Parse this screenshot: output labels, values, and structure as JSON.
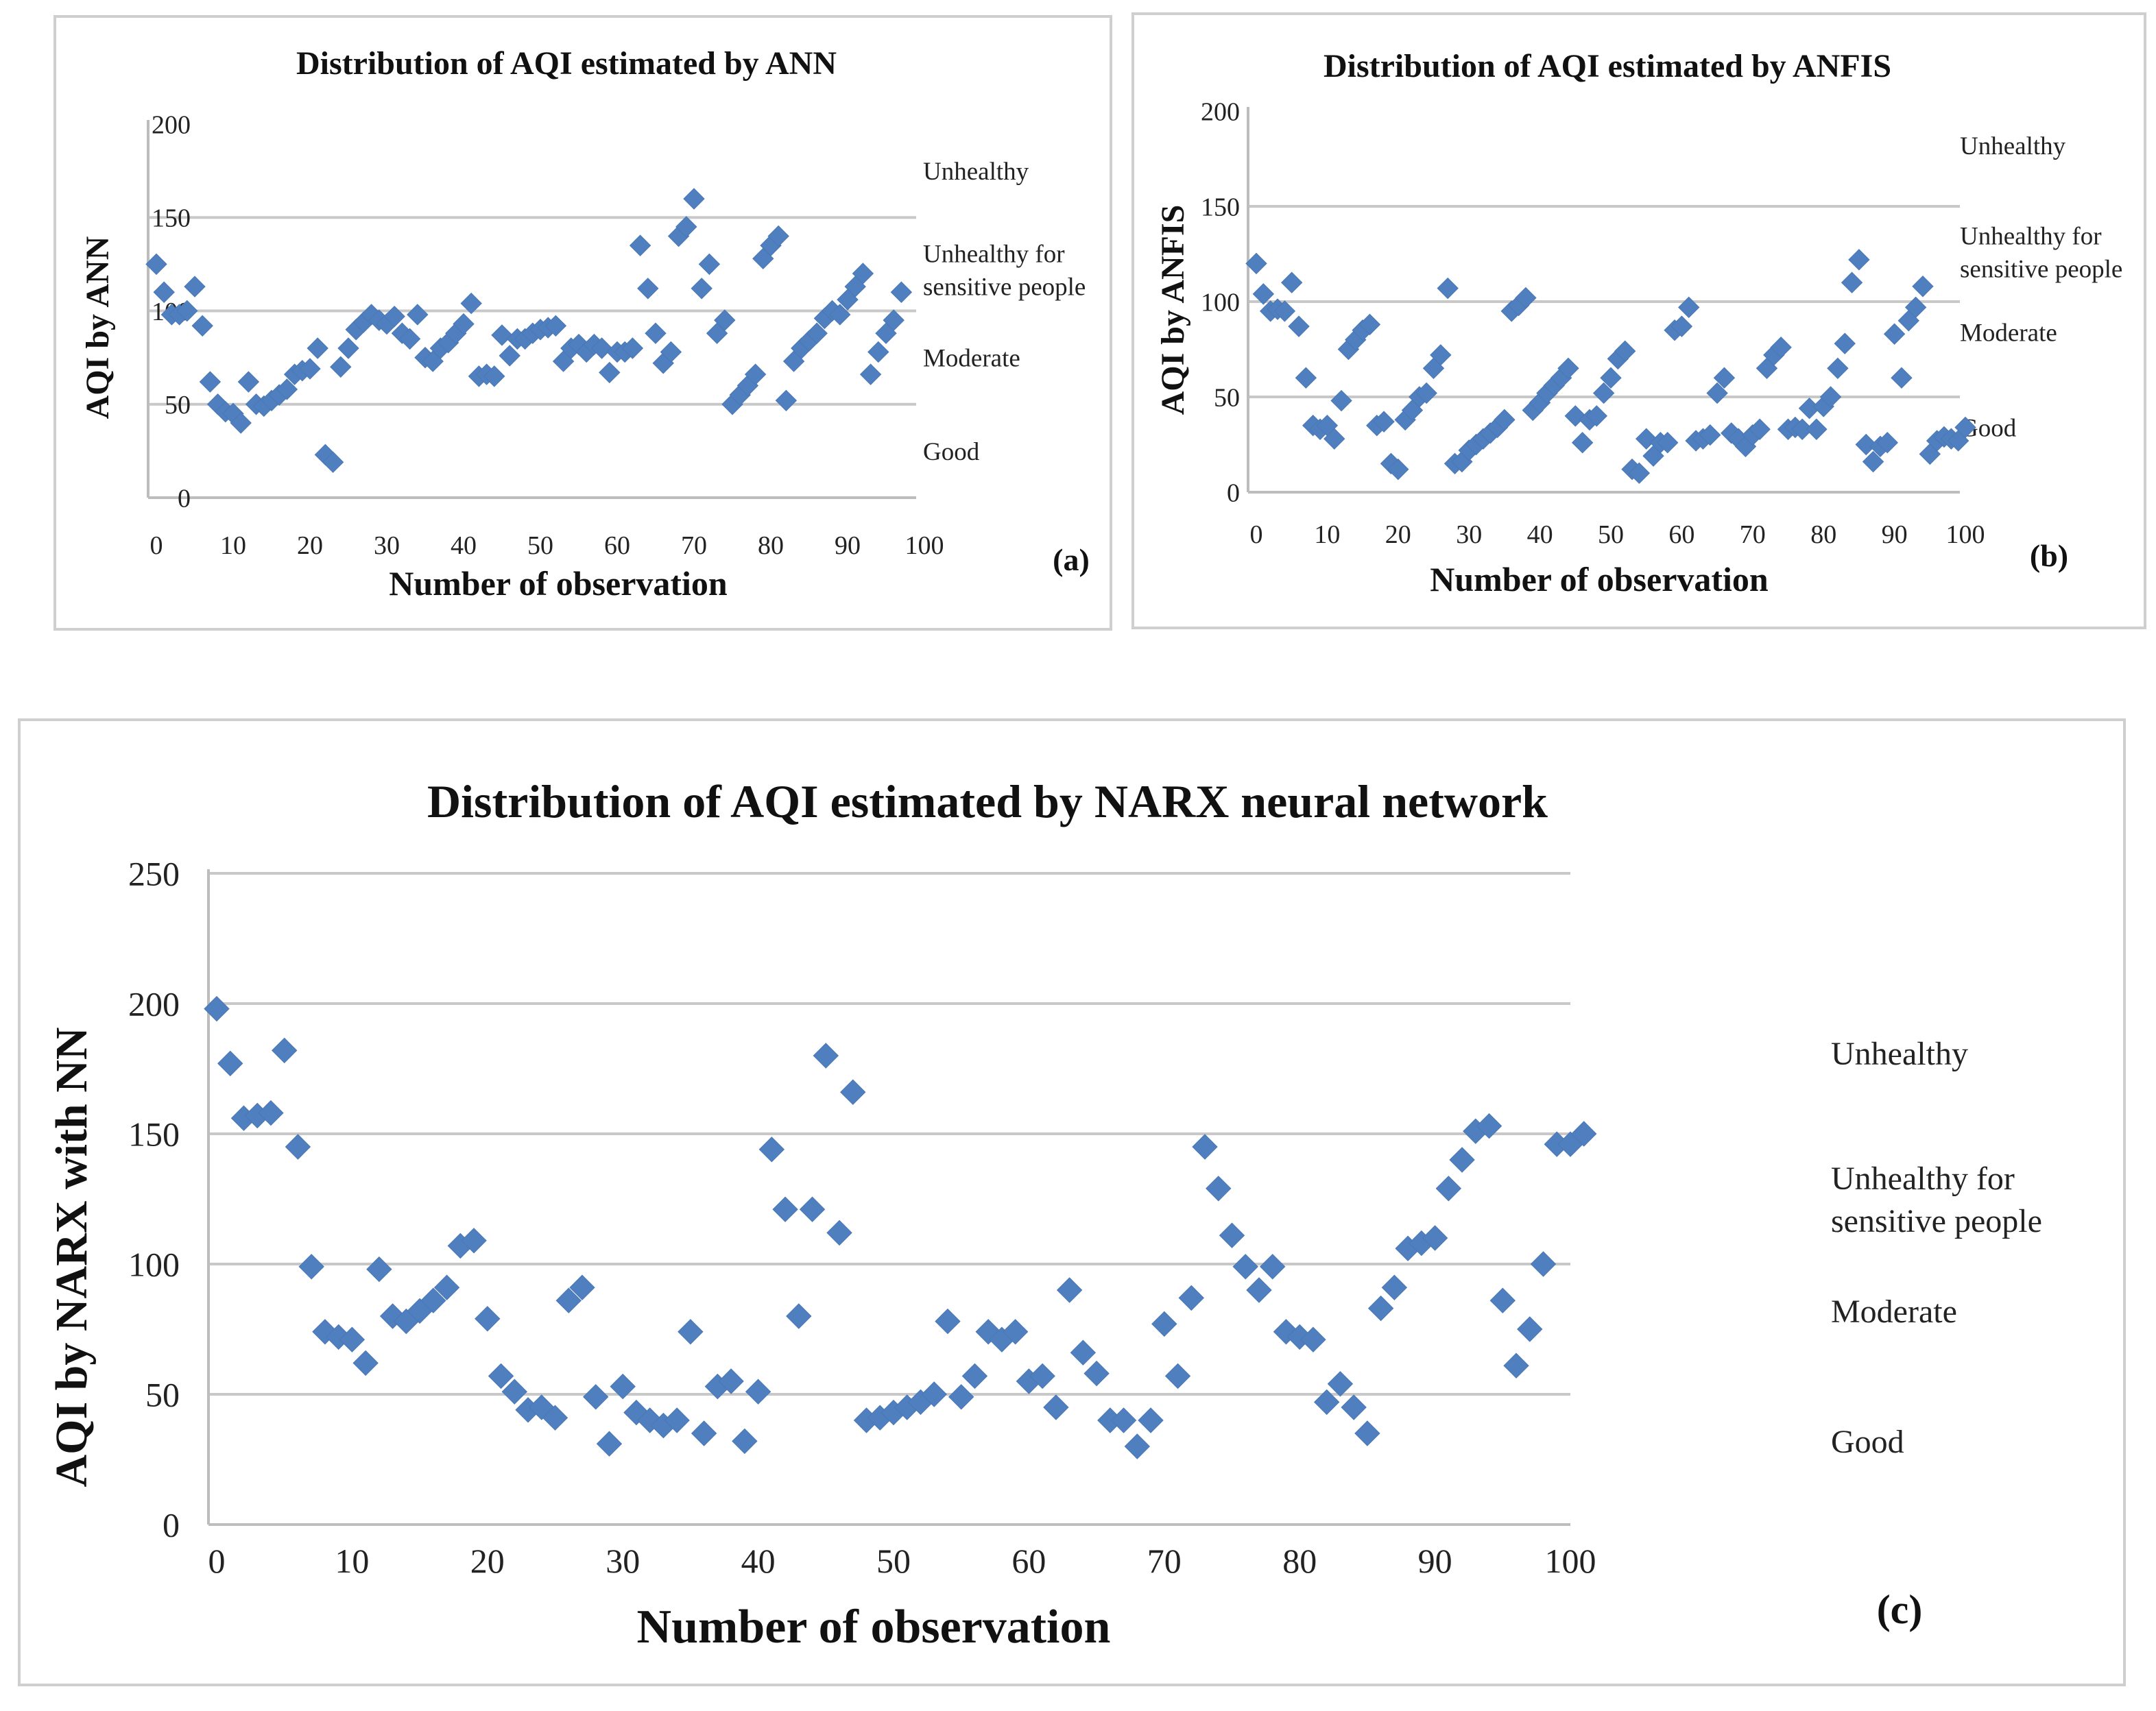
{
  "chart_data": [
    {
      "id": "a",
      "type": "scatter",
      "title": "Distribution of AQI estimated by ANN",
      "xlabel": "Number of observation",
      "ylabel": "AQI by ANN",
      "panel_label": "(a)",
      "xlim": [
        0,
        100
      ],
      "ylim": [
        0,
        200
      ],
      "xticks": [
        0,
        10,
        20,
        30,
        40,
        50,
        60,
        70,
        80,
        90,
        100
      ],
      "yticks": [
        0,
        50,
        100,
        150,
        200
      ],
      "gridlines": [
        50,
        100,
        150
      ],
      "categories": [
        {
          "text": "Unhealthy",
          "lines": [
            "Unhealthy"
          ],
          "y": 175
        },
        {
          "text": "Unhealthy for sensitive people",
          "lines": [
            "Unhealthy for",
            "sensitive people"
          ],
          "y": 122
        },
        {
          "text": "Moderate",
          "lines": [
            "Moderate"
          ],
          "y": 75
        },
        {
          "text": "Good",
          "lines": [
            "Good"
          ],
          "y": 25
        }
      ],
      "points": [
        [
          0,
          125
        ],
        [
          1,
          110
        ],
        [
          2,
          98
        ],
        [
          3,
          98
        ],
        [
          4,
          100
        ],
        [
          5,
          113
        ],
        [
          6,
          92
        ],
        [
          7,
          62
        ],
        [
          8,
          50
        ],
        [
          9,
          46
        ],
        [
          10,
          45
        ],
        [
          11,
          40
        ],
        [
          12,
          62
        ],
        [
          13,
          50
        ],
        [
          14,
          49
        ],
        [
          15,
          52
        ],
        [
          16,
          55
        ],
        [
          17,
          58
        ],
        [
          18,
          66
        ],
        [
          19,
          68
        ],
        [
          20,
          69
        ],
        [
          21,
          80
        ],
        [
          22,
          23
        ],
        [
          23,
          19
        ],
        [
          24,
          70
        ],
        [
          25,
          80
        ],
        [
          26,
          90
        ],
        [
          27,
          94
        ],
        [
          28,
          98
        ],
        [
          29,
          95
        ],
        [
          30,
          93
        ],
        [
          31,
          97
        ],
        [
          32,
          88
        ],
        [
          33,
          85
        ],
        [
          34,
          98
        ],
        [
          35,
          75
        ],
        [
          36,
          73
        ],
        [
          37,
          80
        ],
        [
          38,
          83
        ],
        [
          39,
          88
        ],
        [
          40,
          93
        ],
        [
          41,
          104
        ],
        [
          42,
          65
        ],
        [
          43,
          66
        ],
        [
          44,
          65
        ],
        [
          45,
          87
        ],
        [
          46,
          76
        ],
        [
          47,
          85
        ],
        [
          48,
          85
        ],
        [
          49,
          88
        ],
        [
          50,
          90
        ],
        [
          51,
          91
        ],
        [
          52,
          92
        ],
        [
          53,
          73
        ],
        [
          54,
          80
        ],
        [
          55,
          82
        ],
        [
          56,
          78
        ],
        [
          57,
          82
        ],
        [
          58,
          80
        ],
        [
          59,
          67
        ],
        [
          60,
          78
        ],
        [
          61,
          78
        ],
        [
          62,
          80
        ],
        [
          63,
          135
        ],
        [
          64,
          112
        ],
        [
          65,
          88
        ],
        [
          66,
          72
        ],
        [
          67,
          78
        ],
        [
          68,
          140
        ],
        [
          69,
          145
        ],
        [
          70,
          160
        ],
        [
          71,
          112
        ],
        [
          72,
          125
        ],
        [
          73,
          88
        ],
        [
          74,
          95
        ],
        [
          75,
          50
        ],
        [
          76,
          55
        ],
        [
          77,
          60
        ],
        [
          78,
          66
        ],
        [
          79,
          128
        ],
        [
          80,
          135
        ],
        [
          81,
          140
        ],
        [
          82,
          52
        ],
        [
          83,
          73
        ],
        [
          84,
          80
        ],
        [
          85,
          84
        ],
        [
          86,
          88
        ],
        [
          87,
          96
        ],
        [
          88,
          100
        ],
        [
          89,
          98
        ],
        [
          90,
          106
        ],
        [
          91,
          113
        ],
        [
          92,
          120
        ],
        [
          93,
          66
        ],
        [
          94,
          78
        ],
        [
          95,
          88
        ],
        [
          96,
          95
        ],
        [
          97,
          110
        ]
      ]
    },
    {
      "id": "b",
      "type": "scatter",
      "title": "Distribution of AQI estimated by ANFIS",
      "xlabel": "Number of observation",
      "ylabel": "AQI by ANFIS",
      "panel_label": "(b)",
      "xlim": [
        0,
        100
      ],
      "ylim": [
        0,
        200
      ],
      "xticks": [
        0,
        10,
        20,
        30,
        40,
        50,
        60,
        70,
        80,
        90,
        100
      ],
      "yticks": [
        0,
        50,
        100,
        150,
        200
      ],
      "gridlines": [
        50,
        100,
        150
      ],
      "categories": [
        {
          "text": "Unhealthy",
          "lines": [
            "Unhealthy"
          ],
          "y": 182
        },
        {
          "text": "Unhealthy for sensitive people",
          "lines": [
            "Unhealthy for",
            "sensitive people"
          ],
          "y": 126
        },
        {
          "text": "Moderate",
          "lines": [
            "Moderate"
          ],
          "y": 84
        },
        {
          "text": "Good",
          "lines": [
            "Good"
          ],
          "y": 34
        }
      ],
      "points": [
        [
          0,
          120
        ],
        [
          1,
          104
        ],
        [
          2,
          95
        ],
        [
          3,
          96
        ],
        [
          4,
          95
        ],
        [
          5,
          110
        ],
        [
          6,
          87
        ],
        [
          7,
          60
        ],
        [
          8,
          35
        ],
        [
          9,
          33
        ],
        [
          10,
          35
        ],
        [
          11,
          28
        ],
        [
          12,
          48
        ],
        [
          13,
          75
        ],
        [
          14,
          80
        ],
        [
          15,
          85
        ],
        [
          16,
          88
        ],
        [
          17,
          35
        ],
        [
          18,
          37
        ],
        [
          19,
          15
        ],
        [
          20,
          12
        ],
        [
          21,
          38
        ],
        [
          22,
          43
        ],
        [
          23,
          50
        ],
        [
          24,
          52
        ],
        [
          25,
          65
        ],
        [
          26,
          72
        ],
        [
          27,
          107
        ],
        [
          28,
          15
        ],
        [
          29,
          16
        ],
        [
          30,
          22
        ],
        [
          31,
          25
        ],
        [
          32,
          28
        ],
        [
          33,
          31
        ],
        [
          34,
          34
        ],
        [
          35,
          38
        ],
        [
          36,
          95
        ],
        [
          37,
          98
        ],
        [
          38,
          102
        ],
        [
          39,
          43
        ],
        [
          40,
          47
        ],
        [
          41,
          52
        ],
        [
          42,
          56
        ],
        [
          43,
          60
        ],
        [
          44,
          65
        ],
        [
          45,
          40
        ],
        [
          46,
          26
        ],
        [
          47,
          38
        ],
        [
          48,
          40
        ],
        [
          49,
          52
        ],
        [
          50,
          60
        ],
        [
          51,
          70
        ],
        [
          52,
          74
        ],
        [
          53,
          12
        ],
        [
          54,
          10
        ],
        [
          55,
          28
        ],
        [
          56,
          19
        ],
        [
          57,
          26
        ],
        [
          58,
          26
        ],
        [
          59,
          85
        ],
        [
          60,
          87
        ],
        [
          61,
          97
        ],
        [
          62,
          27
        ],
        [
          63,
          28
        ],
        [
          64,
          30
        ],
        [
          65,
          52
        ],
        [
          66,
          60
        ],
        [
          67,
          31
        ],
        [
          68,
          28
        ],
        [
          69,
          24
        ],
        [
          70,
          30
        ],
        [
          71,
          33
        ],
        [
          72,
          65
        ],
        [
          73,
          72
        ],
        [
          74,
          76
        ],
        [
          75,
          33
        ],
        [
          76,
          34
        ],
        [
          77,
          33
        ],
        [
          78,
          44
        ],
        [
          79,
          33
        ],
        [
          80,
          45
        ],
        [
          81,
          50
        ],
        [
          82,
          65
        ],
        [
          83,
          78
        ],
        [
          84,
          110
        ],
        [
          85,
          122
        ],
        [
          86,
          25
        ],
        [
          87,
          16
        ],
        [
          88,
          24
        ],
        [
          89,
          26
        ],
        [
          90,
          83
        ],
        [
          91,
          60
        ],
        [
          92,
          90
        ],
        [
          93,
          97
        ],
        [
          94,
          108
        ],
        [
          95,
          20
        ],
        [
          96,
          27
        ],
        [
          97,
          29
        ],
        [
          98,
          28
        ],
        [
          99,
          27
        ],
        [
          100,
          34
        ]
      ]
    },
    {
      "id": "c",
      "type": "scatter",
      "title": "Distribution of AQI estimated by NARX neural network",
      "xlabel": "Number of observation",
      "ylabel": "AQI by NARX with NN",
      "panel_label": "(c)",
      "xlim": [
        0,
        100
      ],
      "ylim": [
        0,
        250
      ],
      "xticks": [
        0,
        10,
        20,
        30,
        40,
        50,
        60,
        70,
        80,
        90,
        100
      ],
      "yticks": [
        0,
        50,
        100,
        150,
        200,
        250
      ],
      "gridlines": [
        50,
        100,
        150,
        200,
        250
      ],
      "categories": [
        {
          "text": "Unhealthy",
          "lines": [
            "Unhealthy"
          ],
          "y": 181
        },
        {
          "text": "Unhealthy for sensitive people",
          "lines": [
            "Unhealthy for",
            "sensitive people"
          ],
          "y": 125
        },
        {
          "text": "Moderate",
          "lines": [
            "Moderate"
          ],
          "y": 82
        },
        {
          "text": "Good",
          "lines": [
            "Good"
          ],
          "y": 32
        }
      ],
      "points": [
        [
          0,
          198
        ],
        [
          1,
          177
        ],
        [
          2,
          156
        ],
        [
          3,
          157
        ],
        [
          4,
          158
        ],
        [
          5,
          182
        ],
        [
          6,
          145
        ],
        [
          7,
          99
        ],
        [
          8,
          74
        ],
        [
          9,
          72
        ],
        [
          10,
          71
        ],
        [
          11,
          62
        ],
        [
          12,
          98
        ],
        [
          13,
          80
        ],
        [
          14,
          78
        ],
        [
          15,
          82
        ],
        [
          16,
          86
        ],
        [
          17,
          91
        ],
        [
          18,
          107
        ],
        [
          19,
          109
        ],
        [
          20,
          79
        ],
        [
          21,
          57
        ],
        [
          22,
          51
        ],
        [
          23,
          44
        ],
        [
          24,
          45
        ],
        [
          25,
          41
        ],
        [
          26,
          86
        ],
        [
          27,
          91
        ],
        [
          28,
          49
        ],
        [
          29,
          31
        ],
        [
          30,
          53
        ],
        [
          31,
          43
        ],
        [
          32,
          40
        ],
        [
          33,
          38
        ],
        [
          34,
          40
        ],
        [
          35,
          74
        ],
        [
          36,
          35
        ],
        [
          37,
          53
        ],
        [
          38,
          55
        ],
        [
          39,
          32
        ],
        [
          40,
          51
        ],
        [
          41,
          144
        ],
        [
          42,
          121
        ],
        [
          43,
          80
        ],
        [
          44,
          121
        ],
        [
          45,
          180
        ],
        [
          46,
          112
        ],
        [
          47,
          166
        ],
        [
          48,
          40
        ],
        [
          49,
          41
        ],
        [
          50,
          43
        ],
        [
          51,
          45
        ],
        [
          52,
          47
        ],
        [
          53,
          50
        ],
        [
          54,
          78
        ],
        [
          55,
          49
        ],
        [
          56,
          57
        ],
        [
          57,
          74
        ],
        [
          58,
          71
        ],
        [
          59,
          74
        ],
        [
          60,
          55
        ],
        [
          61,
          57
        ],
        [
          62,
          45
        ],
        [
          63,
          90
        ],
        [
          64,
          66
        ],
        [
          65,
          58
        ],
        [
          66,
          40
        ],
        [
          67,
          40
        ],
        [
          68,
          30
        ],
        [
          69,
          40
        ],
        [
          70,
          77
        ],
        [
          71,
          57
        ],
        [
          72,
          87
        ],
        [
          73,
          145
        ],
        [
          74,
          129
        ],
        [
          75,
          111
        ],
        [
          76,
          99
        ],
        [
          77,
          90
        ],
        [
          78,
          99
        ],
        [
          79,
          74
        ],
        [
          80,
          72
        ],
        [
          81,
          71
        ],
        [
          82,
          47
        ],
        [
          83,
          54
        ],
        [
          84,
          45
        ],
        [
          85,
          35
        ],
        [
          86,
          83
        ],
        [
          87,
          91
        ],
        [
          88,
          106
        ],
        [
          89,
          108
        ],
        [
          90,
          110
        ],
        [
          91,
          129
        ],
        [
          92,
          140
        ],
        [
          93,
          151
        ],
        [
          94,
          153
        ],
        [
          95,
          86
        ],
        [
          96,
          61
        ],
        [
          97,
          75
        ],
        [
          98,
          100
        ],
        [
          99,
          146
        ],
        [
          100,
          146
        ],
        [
          101,
          150
        ]
      ]
    }
  ],
  "colors": {
    "marker": "#4f7fbe",
    "grid": "#c8c8c8",
    "panel_border": "#cfcfcf"
  }
}
